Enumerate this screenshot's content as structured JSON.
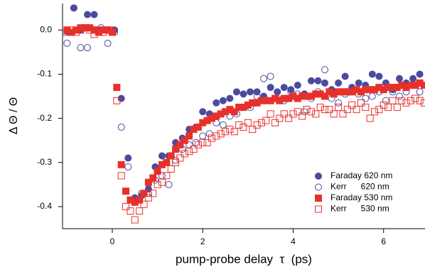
{
  "chart_data": {
    "type": "scatter",
    "xlabel": "pump-probe delay  τ  (ps)",
    "ylabel": "Δ Θ / Θ",
    "xlim": [
      -1.1,
      6.9
    ],
    "ylim": [
      -0.45,
      0.06
    ],
    "xticks": [
      0,
      2,
      4,
      6
    ],
    "yticks": [
      {
        "value": 0,
        "label": "0.0"
      },
      -0.1,
      -0.2,
      -0.3,
      -0.4
    ],
    "legend": "lower right",
    "series": [
      {
        "name": "Faraday 620 nm",
        "color": "#4b4b9e",
        "marker": "circle",
        "filled": true,
        "x": [
          -1.0,
          -0.85,
          -0.7,
          -0.55,
          -0.4,
          -0.25,
          -0.1,
          0.05,
          0.2,
          0.35,
          0.5,
          0.65,
          0.8,
          0.95,
          1.1,
          1.25,
          1.4,
          1.55,
          1.7,
          1.85,
          2.0,
          2.15,
          2.3,
          2.45,
          2.6,
          2.75,
          2.9,
          3.05,
          3.2,
          3.35,
          3.5,
          3.65,
          3.8,
          3.95,
          4.1,
          4.25,
          4.4,
          4.55,
          4.7,
          4.85,
          5.0,
          5.15,
          5.3,
          5.45,
          5.6,
          5.75,
          5.9,
          6.05,
          6.2,
          6.35,
          6.5,
          6.65,
          6.8
        ],
        "values": [
          -0.003,
          0.05,
          0.0,
          0.035,
          0.035,
          0.0,
          0.0,
          0.0,
          -0.155,
          -0.29,
          -0.38,
          -0.375,
          -0.36,
          -0.31,
          -0.285,
          -0.285,
          -0.255,
          -0.245,
          -0.225,
          -0.22,
          -0.185,
          -0.19,
          -0.165,
          -0.16,
          -0.155,
          -0.14,
          -0.145,
          -0.14,
          -0.14,
          -0.15,
          -0.13,
          -0.14,
          -0.13,
          -0.135,
          -0.125,
          -0.145,
          -0.115,
          -0.115,
          -0.12,
          -0.135,
          -0.12,
          -0.105,
          -0.13,
          -0.12,
          -0.125,
          -0.1,
          -0.105,
          -0.12,
          -0.135,
          -0.11,
          -0.12,
          -0.11,
          -0.1
        ]
      },
      {
        "name": "Kerr      620 nm",
        "color": "#4b4b9e",
        "marker": "circle",
        "filled": false,
        "x": [
          -1.0,
          -0.85,
          -0.7,
          -0.55,
          -0.4,
          -0.25,
          -0.1,
          0.05,
          0.2,
          0.35,
          0.5,
          0.65,
          0.8,
          0.95,
          1.1,
          1.25,
          1.4,
          1.55,
          1.7,
          1.85,
          2.0,
          2.15,
          2.3,
          2.45,
          2.6,
          2.75,
          2.9,
          3.05,
          3.2,
          3.35,
          3.5,
          3.65,
          3.8,
          3.95,
          4.1,
          4.25,
          4.4,
          4.55,
          4.7,
          4.85,
          5.0,
          5.15,
          5.3,
          5.45,
          5.6,
          5.75,
          5.9,
          6.05,
          6.2,
          6.35,
          6.5,
          6.65,
          6.8
        ],
        "values": [
          -0.03,
          0.05,
          -0.04,
          -0.04,
          0.0,
          0.005,
          -0.03,
          -0.005,
          -0.22,
          -0.31,
          -0.39,
          -0.37,
          -0.37,
          -0.34,
          -0.33,
          -0.35,
          -0.295,
          -0.27,
          -0.26,
          -0.255,
          -0.24,
          -0.235,
          -0.21,
          -0.215,
          -0.195,
          -0.19,
          -0.175,
          -0.175,
          -0.15,
          -0.11,
          -0.105,
          -0.155,
          -0.16,
          -0.14,
          -0.145,
          -0.185,
          -0.155,
          -0.14,
          -0.09,
          -0.155,
          -0.165,
          -0.145,
          -0.13,
          -0.145,
          -0.155,
          -0.15,
          -0.14,
          -0.16,
          -0.14,
          -0.15,
          -0.14,
          -0.125,
          -0.14
        ]
      },
      {
        "name": "Faraday 530 nm",
        "color": "#e8302a",
        "marker": "square",
        "filled": true,
        "x": [
          -1.0,
          -0.9,
          -0.8,
          -0.7,
          -0.6,
          -0.5,
          -0.4,
          -0.3,
          -0.2,
          -0.1,
          0.0,
          0.1,
          0.2,
          0.3,
          0.4,
          0.5,
          0.6,
          0.7,
          0.8,
          0.9,
          1.0,
          1.1,
          1.2,
          1.3,
          1.4,
          1.5,
          1.6,
          1.7,
          1.8,
          1.9,
          2.0,
          2.1,
          2.2,
          2.3,
          2.4,
          2.5,
          2.6,
          2.7,
          2.8,
          2.9,
          3.0,
          3.1,
          3.2,
          3.3,
          3.4,
          3.5,
          3.6,
          3.7,
          3.8,
          3.9,
          4.0,
          4.1,
          4.2,
          4.3,
          4.4,
          4.5,
          4.6,
          4.7,
          4.8,
          4.9,
          5.0,
          5.1,
          5.2,
          5.3,
          5.4,
          5.5,
          5.6,
          5.7,
          5.8,
          5.9,
          6.0,
          6.1,
          6.2,
          6.3,
          6.4,
          6.5,
          6.6,
          6.7,
          6.8,
          6.9
        ],
        "values": [
          0,
          -0.005,
          0,
          0.005,
          0.005,
          0.005,
          0,
          -0.005,
          0,
          0,
          -0.005,
          -0.13,
          -0.305,
          -0.365,
          -0.385,
          -0.39,
          -0.385,
          -0.37,
          -0.345,
          -0.335,
          -0.32,
          -0.305,
          -0.3,
          -0.285,
          -0.27,
          -0.26,
          -0.25,
          -0.24,
          -0.225,
          -0.22,
          -0.21,
          -0.205,
          -0.2,
          -0.195,
          -0.19,
          -0.185,
          -0.18,
          -0.185,
          -0.175,
          -0.175,
          -0.17,
          -0.165,
          -0.165,
          -0.16,
          -0.16,
          -0.16,
          -0.155,
          -0.16,
          -0.155,
          -0.155,
          -0.15,
          -0.155,
          -0.15,
          -0.15,
          -0.15,
          -0.145,
          -0.145,
          -0.15,
          -0.14,
          -0.145,
          -0.14,
          -0.14,
          -0.14,
          -0.14,
          -0.135,
          -0.14,
          -0.135,
          -0.135,
          -0.135,
          -0.13,
          -0.135,
          -0.13,
          -0.13,
          -0.13,
          -0.125,
          -0.13,
          -0.125,
          -0.125,
          -0.12,
          -0.125
        ]
      },
      {
        "name": "Kerr      530 nm",
        "color": "#e8302a",
        "marker": "square",
        "filled": false,
        "x": [
          -1.0,
          -0.9,
          -0.8,
          -0.7,
          -0.6,
          -0.5,
          -0.4,
          -0.3,
          -0.2,
          -0.1,
          0.0,
          0.1,
          0.2,
          0.3,
          0.4,
          0.5,
          0.6,
          0.7,
          0.8,
          0.9,
          1.0,
          1.1,
          1.2,
          1.3,
          1.4,
          1.5,
          1.6,
          1.7,
          1.8,
          1.9,
          2.0,
          2.1,
          2.2,
          2.3,
          2.4,
          2.5,
          2.6,
          2.7,
          2.8,
          2.9,
          3.0,
          3.1,
          3.2,
          3.3,
          3.4,
          3.5,
          3.6,
          3.7,
          3.8,
          3.9,
          4.0,
          4.1,
          4.2,
          4.3,
          4.4,
          4.5,
          4.6,
          4.7,
          4.8,
          4.9,
          5.0,
          5.1,
          5.2,
          5.3,
          5.4,
          5.5,
          5.6,
          5.7,
          5.8,
          5.9,
          6.0,
          6.1,
          6.2,
          6.3,
          6.4,
          6.5,
          6.6,
          6.7,
          6.8,
          6.9
        ],
        "values": [
          -0.005,
          0,
          -0.005,
          0,
          0.005,
          0,
          -0.01,
          0,
          -0.005,
          0,
          0,
          -0.16,
          -0.33,
          -0.4,
          -0.41,
          -0.43,
          -0.41,
          -0.395,
          -0.38,
          -0.37,
          -0.35,
          -0.345,
          -0.33,
          -0.315,
          -0.3,
          -0.29,
          -0.28,
          -0.275,
          -0.27,
          -0.26,
          -0.255,
          -0.255,
          -0.245,
          -0.24,
          -0.235,
          -0.23,
          -0.225,
          -0.23,
          -0.215,
          -0.22,
          -0.21,
          -0.225,
          -0.215,
          -0.21,
          -0.205,
          -0.19,
          -0.21,
          -0.2,
          -0.19,
          -0.2,
          -0.19,
          -0.185,
          -0.195,
          -0.18,
          -0.185,
          -0.19,
          -0.175,
          -0.18,
          -0.18,
          -0.19,
          -0.175,
          -0.19,
          -0.18,
          -0.17,
          -0.18,
          -0.165,
          -0.175,
          -0.2,
          -0.185,
          -0.18,
          -0.17,
          -0.175,
          -0.16,
          -0.175,
          -0.16,
          -0.165,
          -0.16,
          -0.155,
          -0.16,
          -0.165
        ]
      }
    ]
  }
}
